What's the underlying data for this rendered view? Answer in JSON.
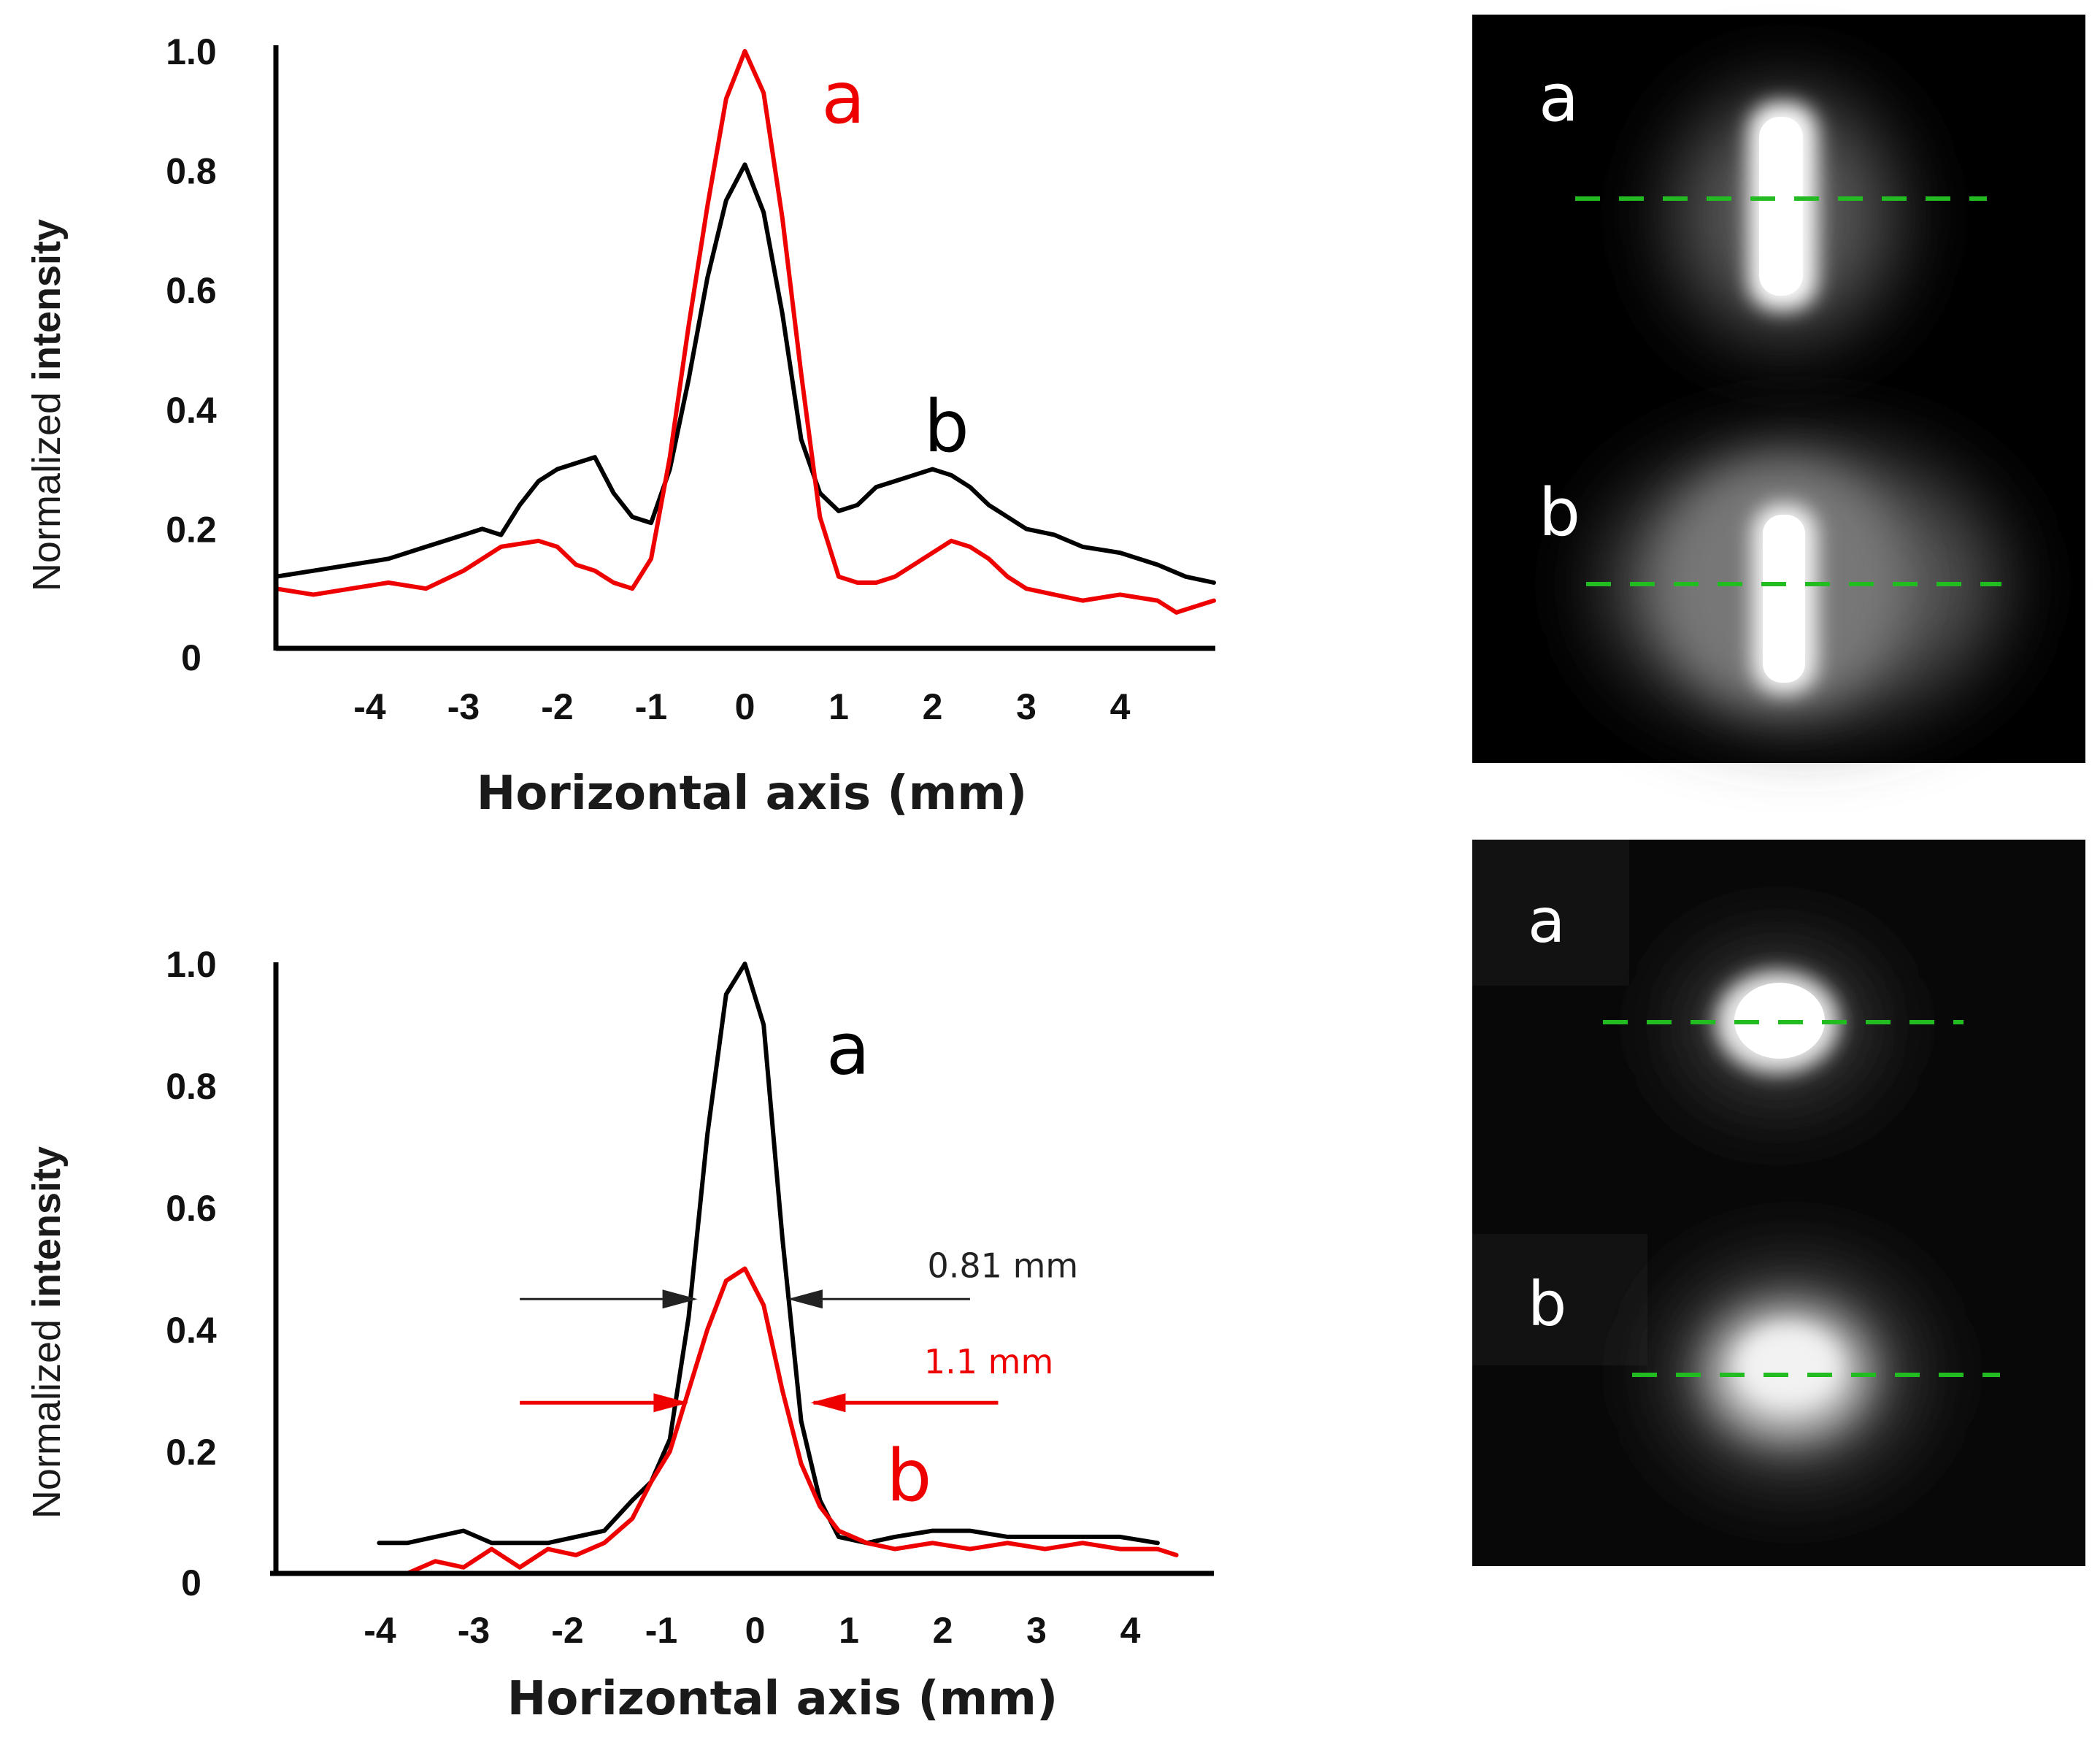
{
  "chart_data": [
    {
      "type": "line",
      "xlabel": "Horizontal axis (mm)",
      "ylabel_prefix": "Normalized ",
      "ylabel_bold": "intensity",
      "xticks": [
        "-4",
        "-3",
        "-2",
        "-1",
        "0",
        "1",
        "2",
        "3",
        "4"
      ],
      "yticks": [
        "0",
        "0.2",
        "0.4",
        "0.6",
        "0.8",
        "1.0"
      ],
      "xlim": [
        -5,
        5
      ],
      "ylim": [
        0,
        1.0
      ],
      "series": [
        {
          "name": "b",
          "color": "#000000",
          "x": [
            -5.0,
            -4.6,
            -4.2,
            -3.8,
            -3.4,
            -3.0,
            -2.8,
            -2.6,
            -2.4,
            -2.2,
            -2.0,
            -1.8,
            -1.6,
            -1.4,
            -1.2,
            -1.0,
            -0.8,
            -0.6,
            -0.4,
            -0.2,
            0.0,
            0.2,
            0.4,
            0.6,
            0.8,
            1.0,
            1.2,
            1.4,
            1.6,
            1.8,
            2.0,
            2.2,
            2.4,
            2.6,
            2.8,
            3.0,
            3.3,
            3.6,
            4.0,
            4.4,
            4.7,
            5.0
          ],
          "y": [
            0.12,
            0.13,
            0.14,
            0.15,
            0.17,
            0.19,
            0.2,
            0.19,
            0.24,
            0.28,
            0.3,
            0.31,
            0.32,
            0.26,
            0.22,
            0.21,
            0.3,
            0.45,
            0.62,
            0.75,
            0.81,
            0.73,
            0.56,
            0.35,
            0.26,
            0.23,
            0.24,
            0.27,
            0.28,
            0.29,
            0.3,
            0.29,
            0.27,
            0.24,
            0.22,
            0.2,
            0.19,
            0.17,
            0.16,
            0.14,
            0.12,
            0.11
          ]
        },
        {
          "name": "a",
          "color": "#ee0000",
          "x": [
            -5.0,
            -4.6,
            -4.2,
            -3.8,
            -3.4,
            -3.0,
            -2.6,
            -2.2,
            -2.0,
            -1.8,
            -1.6,
            -1.4,
            -1.2,
            -1.0,
            -0.8,
            -0.6,
            -0.4,
            -0.2,
            0.0,
            0.2,
            0.4,
            0.6,
            0.8,
            1.0,
            1.2,
            1.4,
            1.6,
            1.8,
            2.0,
            2.2,
            2.4,
            2.6,
            2.8,
            3.0,
            3.3,
            3.6,
            4.0,
            4.4,
            4.6,
            4.8,
            5.0
          ],
          "y": [
            0.1,
            0.09,
            0.1,
            0.11,
            0.1,
            0.13,
            0.17,
            0.18,
            0.17,
            0.14,
            0.13,
            0.11,
            0.1,
            0.15,
            0.32,
            0.54,
            0.74,
            0.92,
            1.0,
            0.93,
            0.72,
            0.46,
            0.22,
            0.12,
            0.11,
            0.11,
            0.12,
            0.14,
            0.16,
            0.18,
            0.17,
            0.15,
            0.12,
            0.1,
            0.09,
            0.08,
            0.09,
            0.08,
            0.06,
            0.07,
            0.08
          ]
        }
      ],
      "curve_labels": [
        {
          "text": "a",
          "color": "#ee0000",
          "x": 1.05,
          "y": 0.88
        },
        {
          "text": "b",
          "color": "#000000",
          "x": 2.15,
          "y": 0.33
        }
      ]
    },
    {
      "type": "line",
      "xlabel": "Horizontal axis (mm)",
      "ylabel_prefix": "Normalized ",
      "ylabel_bold": "intensity",
      "xticks": [
        "-4",
        "-3",
        "-2",
        "-1",
        "0",
        "1",
        "2",
        "3",
        "4"
      ],
      "yticks": [
        "0",
        "0.2",
        "0.4",
        "0.6",
        "0.8",
        "1.0"
      ],
      "xlim": [
        -5,
        5
      ],
      "ylim": [
        0,
        1.0
      ],
      "series": [
        {
          "name": "a",
          "color": "#000000",
          "x": [
            -3.9,
            -3.6,
            -3.3,
            -3.0,
            -2.7,
            -2.4,
            -2.1,
            -1.8,
            -1.5,
            -1.2,
            -1.0,
            -0.8,
            -0.6,
            -0.4,
            -0.2,
            0.0,
            0.2,
            0.4,
            0.6,
            0.8,
            1.0,
            1.3,
            1.6,
            2.0,
            2.4,
            2.8,
            3.2,
            3.6,
            4.0,
            4.4
          ],
          "y": [
            0.05,
            0.05,
            0.06,
            0.07,
            0.05,
            0.05,
            0.05,
            0.06,
            0.07,
            0.12,
            0.15,
            0.22,
            0.42,
            0.72,
            0.95,
            1.0,
            0.9,
            0.55,
            0.25,
            0.12,
            0.06,
            0.05,
            0.06,
            0.07,
            0.07,
            0.06,
            0.06,
            0.06,
            0.06,
            0.05
          ]
        },
        {
          "name": "b",
          "color": "#ee0000",
          "x": [
            -3.6,
            -3.3,
            -3.0,
            -2.7,
            -2.4,
            -2.1,
            -1.8,
            -1.5,
            -1.2,
            -1.0,
            -0.8,
            -0.6,
            -0.4,
            -0.2,
            0.0,
            0.2,
            0.4,
            0.6,
            0.8,
            1.0,
            1.3,
            1.6,
            2.0,
            2.4,
            2.8,
            3.2,
            3.6,
            4.0,
            4.4,
            4.6
          ],
          "y": [
            0.0,
            0.02,
            0.01,
            0.04,
            0.01,
            0.04,
            0.03,
            0.05,
            0.09,
            0.15,
            0.2,
            0.3,
            0.4,
            0.48,
            0.5,
            0.44,
            0.3,
            0.18,
            0.11,
            0.07,
            0.05,
            0.04,
            0.05,
            0.04,
            0.05,
            0.04,
            0.05,
            0.04,
            0.04,
            0.03
          ]
        }
      ],
      "curve_labels": [
        {
          "text": "a",
          "color": "#000000",
          "x": 1.1,
          "y": 0.82
        },
        {
          "text": "b",
          "color": "#ee0000",
          "x": 1.75,
          "y": 0.12
        }
      ],
      "annotations": [
        {
          "text": "0.81 mm",
          "color": "#222222",
          "width_mm": 0.81,
          "y": 0.45
        },
        {
          "text": "1.1 mm",
          "color": "#ee0000",
          "width_mm": 1.1,
          "y": 0.28
        }
      ]
    }
  ],
  "beam_images": [
    {
      "panel": "top",
      "labels": [
        "a",
        "b"
      ],
      "style": "vertical-fringe",
      "line_color": "#22bb22"
    },
    {
      "panel": "bottom",
      "labels": [
        "a",
        "b"
      ],
      "style": "round-spot",
      "line_color": "#22bb22"
    }
  ]
}
